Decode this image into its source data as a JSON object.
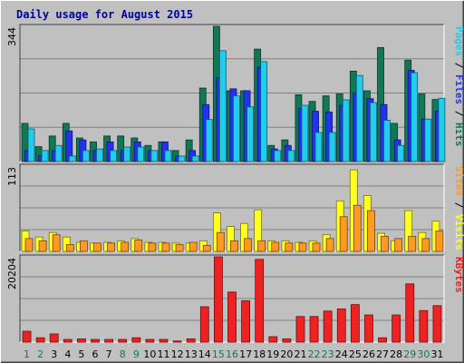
{
  "chart_data": [
    {
      "type": "bar",
      "title": "Daily usage for August 2015",
      "ymax_label": "344",
      "ylim": [
        0,
        344
      ],
      "right_labels": [
        "Pages",
        "Files",
        "Hits"
      ],
      "categories": [
        "1",
        "2",
        "3",
        "4",
        "5",
        "6",
        "7",
        "8",
        "9",
        "10",
        "11",
        "12",
        "13",
        "14",
        "15",
        "16",
        "17",
        "18",
        "19",
        "20",
        "21",
        "22",
        "23",
        "24",
        "25",
        "26",
        "27",
        "28",
        "29",
        "30",
        "31"
      ],
      "series": [
        {
          "name": "Hits",
          "values": [
            97,
            38,
            65,
            97,
            60,
            50,
            65,
            65,
            60,
            41,
            50,
            28,
            55,
            187,
            344,
            180,
            180,
            286,
            41,
            55,
            170,
            153,
            167,
            172,
            230,
            180,
            290,
            97,
            258,
            172,
            158
          ]
        },
        {
          "name": "Files",
          "values": [
            28,
            14,
            28,
            78,
            55,
            28,
            50,
            28,
            50,
            28,
            50,
            14,
            28,
            145,
            213,
            185,
            180,
            240,
            32,
            41,
            135,
            128,
            126,
            143,
            174,
            160,
            145,
            55,
            232,
            108,
            128
          ]
        },
        {
          "name": "Pages",
          "values": [
            83,
            28,
            41,
            14,
            28,
            32,
            28,
            37,
            37,
            28,
            28,
            14,
            14,
            107,
            282,
            167,
            139,
            254,
            28,
            28,
            143,
            74,
            74,
            157,
            219,
            150,
            105,
            41,
            226,
            108,
            161
          ]
        }
      ],
      "colors": {
        "Hits": "#117755",
        "Files": "#2233ee",
        "Pages": "#22ccee"
      }
    },
    {
      "type": "bar",
      "ymax_label": "113",
      "ylim": [
        0,
        113
      ],
      "right_labels": [
        "Sites",
        "Visits"
      ],
      "categories": [
        "1",
        "2",
        "3",
        "4",
        "5",
        "6",
        "7",
        "8",
        "9",
        "10",
        "11",
        "12",
        "13",
        "14",
        "15",
        "16",
        "17",
        "18",
        "19",
        "20",
        "21",
        "22",
        "23",
        "24",
        "25",
        "26",
        "27",
        "28",
        "29",
        "30",
        "31"
      ],
      "series": [
        {
          "name": "Visits",
          "values": [
            27,
            19,
            25,
            19,
            12,
            11,
            12,
            14,
            17,
            12,
            12,
            11,
            11,
            14,
            51,
            33,
            37,
            55,
            14,
            14,
            12,
            14,
            22,
            67,
            108,
            74,
            24,
            14,
            54,
            25,
            40
          ]
        },
        {
          "name": "Sites",
          "values": [
            17,
            14,
            22,
            9,
            14,
            11,
            11,
            12,
            15,
            11,
            11,
            9,
            12,
            8,
            25,
            14,
            17,
            14,
            12,
            11,
            11,
            11,
            17,
            46,
            61,
            54,
            20,
            17,
            20,
            17,
            27
          ]
        }
      ],
      "colors": {
        "Visits": "#ffff22",
        "Sites": "#ff9922"
      }
    },
    {
      "type": "bar",
      "ymax_label": "20204",
      "ylim": [
        0,
        20204
      ],
      "right_labels": [
        "KBytes"
      ],
      "categories": [
        "1",
        "2",
        "3",
        "4",
        "5",
        "6",
        "7",
        "8",
        "9",
        "10",
        "11",
        "12",
        "13",
        "14",
        "15",
        "16",
        "17",
        "18",
        "19",
        "20",
        "21",
        "22",
        "23",
        "24",
        "25",
        "26",
        "27",
        "28",
        "29",
        "30",
        "31"
      ],
      "series": [
        {
          "name": "KBytes",
          "values": [
            2580,
            1030,
            1940,
            640,
            770,
            640,
            640,
            640,
            1030,
            640,
            640,
            260,
            770,
            8380,
            20200,
            11860,
            9790,
            19600,
            1290,
            770,
            6060,
            6060,
            7350,
            7860,
            8890,
            6440,
            1030,
            6440,
            13800,
            7470,
            8640
          ]
        }
      ],
      "colors": {
        "KBytes": "#ee2222"
      }
    }
  ],
  "x_label_colors": [
    "#117755",
    "#117755",
    "#000080"
  ],
  "weekend_days": [
    "1",
    "2",
    "8",
    "9",
    "15",
    "16",
    "22",
    "23",
    "29",
    "30"
  ]
}
